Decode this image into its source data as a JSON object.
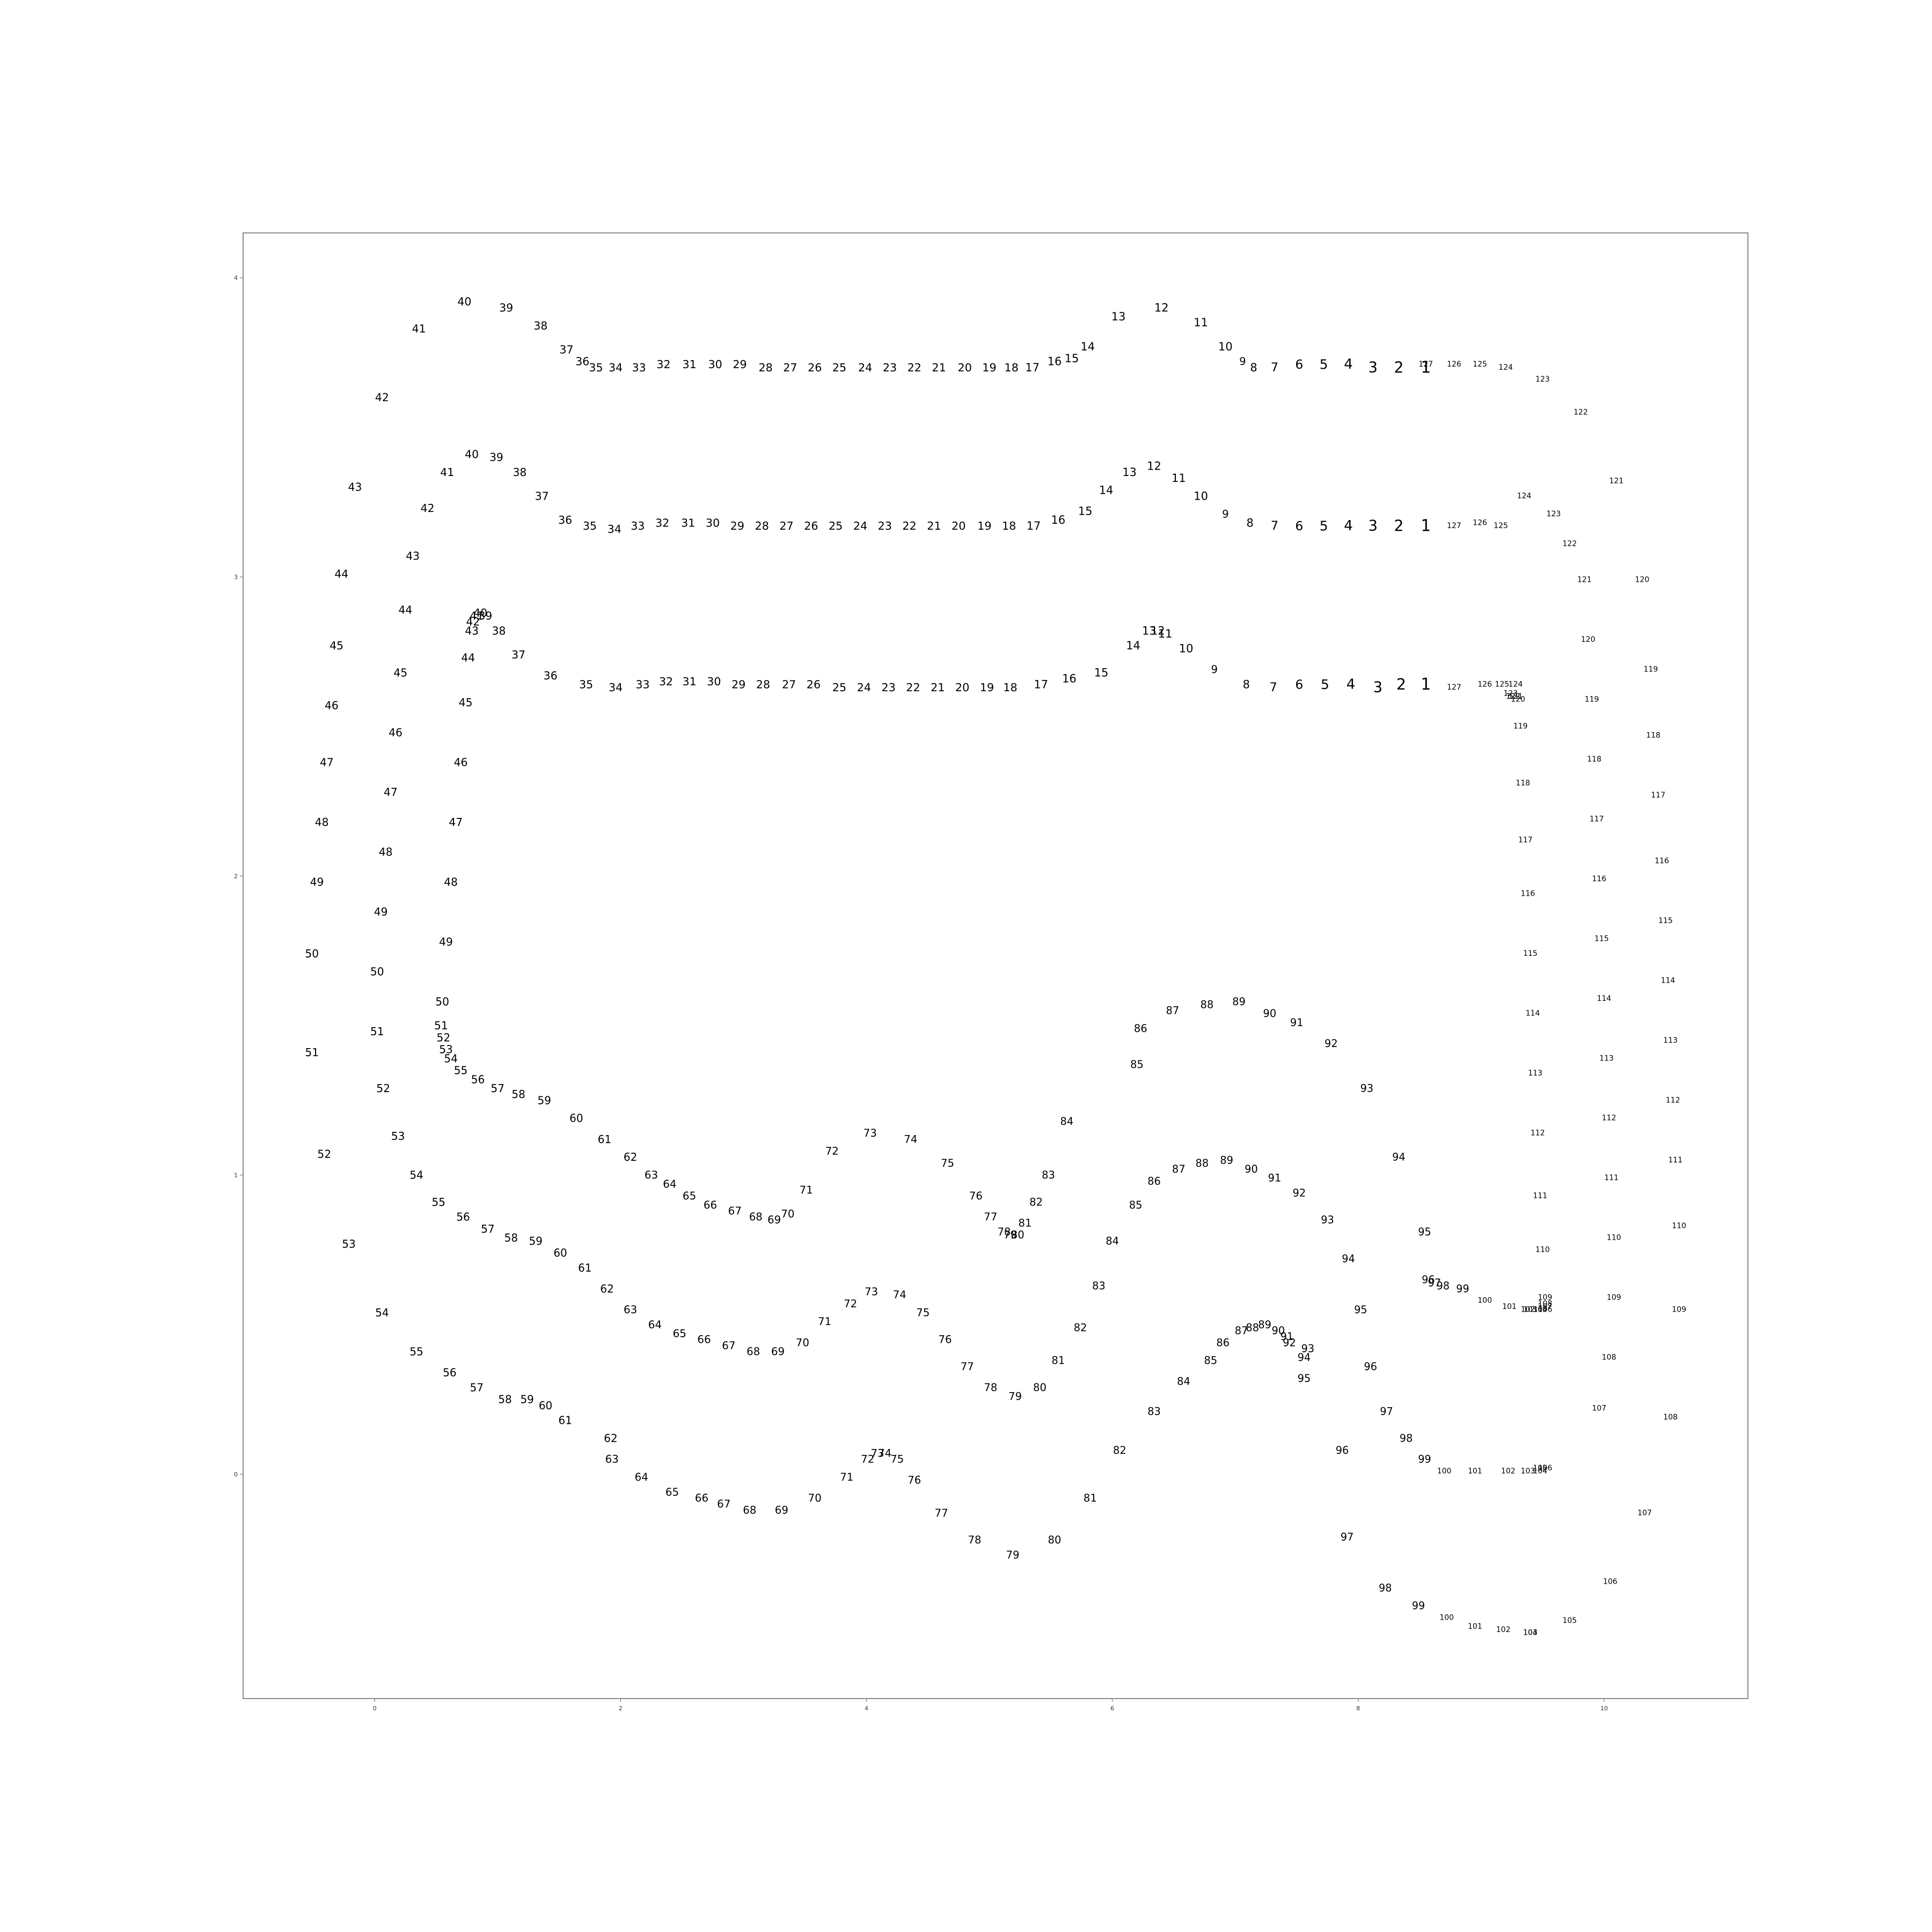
{
  "chart_data": {
    "type": "scatter",
    "title": "",
    "xlabel": "",
    "ylabel": "",
    "xlim": [
      -1.07,
      11.17
    ],
    "ylim": [
      -0.75,
      4.15
    ],
    "x_ticks": [
      "0",
      "2",
      "4",
      "6",
      "8",
      "10"
    ],
    "y_ticks": [
      "0",
      "1",
      "2",
      "3",
      "4"
    ],
    "grid": false,
    "legend": "none",
    "marker_style": "text",
    "text_color": "#000000",
    "frame_color": "#8c8c8c",
    "series": [
      {
        "labels": [
          "1",
          "2",
          "3",
          "4",
          "5",
          "6",
          "7",
          "8",
          "9",
          "10",
          "11",
          "12",
          "13",
          "14",
          "15",
          "16",
          "17",
          "18",
          "19",
          "20",
          "21",
          "22",
          "23",
          "24",
          "25",
          "26",
          "27",
          "28",
          "29",
          "30",
          "31",
          "32",
          "33",
          "34",
          "35",
          "36",
          "37",
          "38",
          "39",
          "40",
          "41",
          "42",
          "43",
          "44",
          "45",
          "46",
          "47",
          "48",
          "49",
          "50",
          "51",
          "52",
          "53",
          "54",
          "55",
          "56",
          "57",
          "58",
          "59",
          "60",
          "61",
          "62",
          "63",
          "64",
          "65",
          "66",
          "67",
          "68",
          "69",
          "70",
          "71",
          "72",
          "73",
          "74",
          "75",
          "76",
          "77",
          "78",
          "79",
          "80",
          "81",
          "82",
          "83",
          "84",
          "85",
          "86",
          "87",
          "88",
          "89",
          "90",
          "91",
          "92",
          "93",
          "94",
          "95",
          "96",
          "97",
          "98",
          "99",
          "100",
          "101",
          "102",
          "103",
          "104",
          "105",
          "106",
          "107",
          "108",
          "109",
          "110",
          "111",
          "112",
          "113",
          "114",
          "115",
          "116",
          "117",
          "118",
          "119",
          "120",
          "121",
          "122",
          "123",
          "124",
          "125",
          "126",
          "127"
        ],
        "x": [
          8.55,
          8.33,
          8.12,
          7.92,
          7.72,
          7.52,
          7.32,
          7.15,
          7.06,
          6.92,
          6.72,
          6.4,
          6.05,
          5.8,
          5.67,
          5.53,
          5.35,
          5.18,
          5.0,
          4.8,
          4.59,
          4.39,
          4.19,
          3.99,
          3.78,
          3.58,
          3.38,
          3.18,
          2.97,
          2.77,
          2.56,
          2.35,
          2.15,
          1.96,
          1.8,
          1.69,
          1.56,
          1.35,
          1.07,
          0.73,
          0.36,
          0.06,
          -0.16,
          -0.27,
          -0.31,
          -0.35,
          -0.39,
          -0.43,
          -0.47,
          -0.51,
          -0.51,
          -0.41,
          -0.21,
          0.06,
          0.34,
          0.61,
          0.83,
          1.06,
          1.24,
          1.39,
          1.55,
          1.92,
          1.93,
          2.17,
          2.42,
          2.66,
          2.84,
          3.05,
          3.31,
          3.58,
          3.84,
          4.01,
          4.09,
          4.15,
          4.25,
          4.39,
          4.61,
          4.88,
          5.19,
          5.53,
          5.82,
          6.06,
          6.34,
          6.58,
          6.8,
          6.9,
          7.05,
          7.14,
          7.24,
          7.35,
          7.42,
          7.44,
          7.59,
          7.56,
          7.56,
          7.87,
          7.91,
          8.22,
          8.49,
          8.72,
          8.95,
          9.18,
          9.4,
          9.4,
          9.72,
          10.05,
          10.33,
          10.54,
          10.61,
          10.61,
          10.58,
          10.56,
          10.54,
          10.52,
          10.5,
          10.47,
          10.44,
          10.4,
          10.38,
          10.31,
          10.1,
          9.81,
          9.5,
          9.2,
          8.99,
          8.78,
          8.55
        ],
        "y": [
          3.7,
          3.7,
          3.7,
          3.71,
          3.71,
          3.71,
          3.7,
          3.7,
          3.72,
          3.77,
          3.85,
          3.9,
          3.87,
          3.77,
          3.73,
          3.72,
          3.7,
          3.7,
          3.7,
          3.7,
          3.7,
          3.7,
          3.7,
          3.7,
          3.7,
          3.7,
          3.7,
          3.7,
          3.71,
          3.71,
          3.71,
          3.71,
          3.7,
          3.7,
          3.7,
          3.72,
          3.76,
          3.84,
          3.9,
          3.92,
          3.83,
          3.6,
          3.3,
          3.01,
          2.77,
          2.57,
          2.38,
          2.18,
          1.98,
          1.74,
          1.41,
          1.07,
          0.77,
          0.54,
          0.41,
          0.34,
          0.29,
          0.25,
          0.25,
          0.23,
          0.18,
          0.12,
          0.05,
          -0.01,
          -0.06,
          -0.08,
          -0.1,
          -0.12,
          -0.12,
          -0.08,
          -0.01,
          0.05,
          0.07,
          0.07,
          0.05,
          -0.02,
          -0.13,
          -0.22,
          -0.27,
          -0.22,
          -0.08,
          0.08,
          0.21,
          0.31,
          0.38,
          0.44,
          0.48,
          0.49,
          0.5,
          0.48,
          0.46,
          0.44,
          0.42,
          0.39,
          0.32,
          0.08,
          -0.21,
          -0.38,
          -0.44,
          -0.48,
          -0.51,
          -0.52,
          -0.53,
          -0.53,
          -0.49,
          -0.36,
          -0.13,
          0.19,
          0.55,
          0.83,
          1.05,
          1.25,
          1.45,
          1.65,
          1.85,
          2.05,
          2.27,
          2.47,
          2.69,
          2.99,
          3.32,
          3.55,
          3.66,
          3.7,
          3.71,
          3.71,
          3.71
        ]
      },
      {
        "labels": [
          "1",
          "2",
          "3",
          "4",
          "5",
          "6",
          "7",
          "8",
          "9",
          "10",
          "11",
          "12",
          "13",
          "14",
          "15",
          "16",
          "17",
          "18",
          "19",
          "20",
          "21",
          "22",
          "23",
          "24",
          "25",
          "26",
          "27",
          "28",
          "29",
          "30",
          "31",
          "32",
          "33",
          "34",
          "35",
          "36",
          "37",
          "38",
          "39",
          "40",
          "41",
          "42",
          "43",
          "44",
          "45",
          "46",
          "47",
          "48",
          "49",
          "50",
          "51",
          "52",
          "53",
          "54",
          "55",
          "56",
          "57",
          "58",
          "59",
          "60",
          "61",
          "62",
          "63",
          "64",
          "65",
          "66",
          "67",
          "68",
          "69",
          "70",
          "71",
          "72",
          "73",
          "74",
          "75",
          "76",
          "77",
          "78",
          "79",
          "80",
          "81",
          "82",
          "83",
          "84",
          "85",
          "86",
          "87",
          "88",
          "89",
          "90",
          "91",
          "92",
          "93",
          "94",
          "95",
          "96",
          "97",
          "98",
          "99",
          "100",
          "101",
          "102",
          "103",
          "104",
          "105",
          "106",
          "107",
          "108",
          "109",
          "110",
          "111",
          "112",
          "113",
          "114",
          "115",
          "116",
          "117",
          "118",
          "119",
          "120",
          "121",
          "122",
          "123",
          "124",
          "125",
          "126",
          "127"
        ],
        "x": [
          8.55,
          8.33,
          8.12,
          7.92,
          7.72,
          7.52,
          7.32,
          7.12,
          6.92,
          6.72,
          6.54,
          6.34,
          6.14,
          5.95,
          5.78,
          5.56,
          5.36,
          5.16,
          4.96,
          4.75,
          4.55,
          4.35,
          4.15,
          3.95,
          3.75,
          3.55,
          3.35,
          3.15,
          2.95,
          2.75,
          2.55,
          2.34,
          2.14,
          1.95,
          1.75,
          1.55,
          1.36,
          1.18,
          0.99,
          0.79,
          0.59,
          0.43,
          0.31,
          0.25,
          0.21,
          0.17,
          0.13,
          0.09,
          0.05,
          0.02,
          0.02,
          0.07,
          0.19,
          0.34,
          0.52,
          0.72,
          0.92,
          1.11,
          1.31,
          1.51,
          1.71,
          1.89,
          2.08,
          2.28,
          2.48,
          2.68,
          2.88,
          3.08,
          3.28,
          3.48,
          3.66,
          3.87,
          4.04,
          4.27,
          4.46,
          4.64,
          4.82,
          5.01,
          5.21,
          5.41,
          5.56,
          5.74,
          5.89,
          6.0,
          6.19,
          6.34,
          6.54,
          6.73,
          6.93,
          7.13,
          7.32,
          7.52,
          7.75,
          7.92,
          8.02,
          8.1,
          8.23,
          8.39,
          8.54,
          8.7,
          8.95,
          9.22,
          9.38,
          9.48,
          9.48,
          9.52,
          9.96,
          10.04,
          10.08,
          10.08,
          10.06,
          10.04,
          10.02,
          10.0,
          9.98,
          9.96,
          9.94,
          9.92,
          9.9,
          9.87,
          9.84,
          9.72,
          9.59,
          9.35,
          9.16,
          8.99,
          8.78,
          8.55
        ],
        "y": [
          3.17,
          3.17,
          3.17,
          3.17,
          3.17,
          3.17,
          3.17,
          3.18,
          3.21,
          3.27,
          3.33,
          3.37,
          3.35,
          3.29,
          3.22,
          3.19,
          3.17,
          3.17,
          3.17,
          3.17,
          3.17,
          3.17,
          3.17,
          3.17,
          3.17,
          3.17,
          3.17,
          3.17,
          3.17,
          3.18,
          3.18,
          3.18,
          3.17,
          3.16,
          3.17,
          3.19,
          3.27,
          3.35,
          3.4,
          3.41,
          3.35,
          3.23,
          3.07,
          2.89,
          2.68,
          2.48,
          2.28,
          2.08,
          1.88,
          1.68,
          1.48,
          1.29,
          1.13,
          1.0,
          0.91,
          0.86,
          0.82,
          0.79,
          0.78,
          0.74,
          0.69,
          0.62,
          0.55,
          0.5,
          0.47,
          0.45,
          0.43,
          0.41,
          0.41,
          0.44,
          0.51,
          0.57,
          0.61,
          0.6,
          0.54,
          0.45,
          0.36,
          0.29,
          0.26,
          0.29,
          0.38,
          0.49,
          0.63,
          0.78,
          0.9,
          0.98,
          1.02,
          1.04,
          1.05,
          1.02,
          0.99,
          0.94,
          0.85,
          0.72,
          0.55,
          0.36,
          0.21,
          0.12,
          0.05,
          0.01,
          0.01,
          0.01,
          0.01,
          0.01,
          0.02,
          0.02,
          0.22,
          0.39,
          0.59,
          0.79,
          0.99,
          1.19,
          1.39,
          1.59,
          1.79,
          1.99,
          2.19,
          2.39,
          2.59,
          2.79,
          2.99,
          3.11,
          3.21,
          3.27,
          3.17,
          3.18,
          3.17,
          3.17
        ]
      },
      {
        "labels": [
          "1",
          "2",
          "3",
          "4",
          "5",
          "6",
          "7",
          "8",
          "9",
          "10",
          "11",
          "12",
          "13",
          "14",
          "15",
          "16",
          "17",
          "18",
          "19",
          "20",
          "21",
          "22",
          "23",
          "24",
          "25",
          "26",
          "27",
          "28",
          "29",
          "30",
          "31",
          "32",
          "33",
          "34",
          "35",
          "36",
          "37",
          "38",
          "39",
          "40",
          "41",
          "42",
          "43",
          "44",
          "45",
          "46",
          "47",
          "48",
          "49",
          "50",
          "51",
          "52",
          "53",
          "54",
          "55",
          "56",
          "57",
          "58",
          "59",
          "60",
          "61",
          "62",
          "63",
          "64",
          "65",
          "66",
          "67",
          "68",
          "69",
          "70",
          "71",
          "72",
          "73",
          "74",
          "75",
          "76",
          "77",
          "78",
          "79",
          "80",
          "81",
          "82",
          "83",
          "84",
          "85",
          "86",
          "87",
          "88",
          "89",
          "90",
          "91",
          "92",
          "93",
          "94",
          "95",
          "96",
          "97",
          "98",
          "99",
          "100",
          "101",
          "102",
          "103",
          "104",
          "105",
          "106",
          "107",
          "108",
          "109",
          "110",
          "111",
          "112",
          "113",
          "114",
          "115",
          "116",
          "117",
          "118",
          "119",
          "120",
          "121",
          "122",
          "123",
          "124",
          "125",
          "126",
          "127"
        ],
        "x": [
          8.55,
          8.35,
          8.16,
          7.94,
          7.73,
          7.52,
          7.31,
          7.09,
          6.83,
          6.6,
          6.43,
          6.37,
          6.3,
          6.17,
          5.91,
          5.65,
          5.42,
          5.17,
          4.98,
          4.78,
          4.58,
          4.38,
          4.18,
          3.98,
          3.78,
          3.57,
          3.37,
          3.16,
          2.96,
          2.76,
          2.56,
          2.37,
          2.18,
          1.96,
          1.72,
          1.43,
          1.17,
          1.01,
          0.9,
          0.86,
          0.83,
          0.8,
          0.79,
          0.76,
          0.74,
          0.7,
          0.66,
          0.62,
          0.58,
          0.55,
          0.54,
          0.56,
          0.58,
          0.62,
          0.7,
          0.84,
          1.0,
          1.17,
          1.38,
          1.64,
          1.87,
          2.08,
          2.25,
          2.4,
          2.56,
          2.73,
          2.93,
          3.1,
          3.25,
          3.36,
          3.51,
          3.72,
          4.03,
          4.36,
          4.66,
          4.89,
          5.01,
          5.12,
          5.17,
          5.23,
          5.29,
          5.38,
          5.48,
          5.63,
          6.2,
          6.23,
          6.49,
          6.77,
          7.03,
          7.28,
          7.5,
          7.78,
          8.07,
          8.33,
          8.54,
          8.57,
          8.62,
          8.69,
          8.85,
          9.03,
          9.23,
          9.38,
          9.4,
          9.48,
          9.48,
          9.52,
          9.52,
          9.52,
          9.52,
          9.5,
          9.48,
          9.46,
          9.44,
          9.42,
          9.4,
          9.38,
          9.36,
          9.34,
          9.32,
          9.3,
          9.28,
          9.26,
          9.24,
          9.28,
          9.17,
          9.03,
          8.78
        ],
        "y": [
          2.64,
          2.64,
          2.63,
          2.64,
          2.64,
          2.64,
          2.63,
          2.64,
          2.69,
          2.76,
          2.81,
          2.82,
          2.82,
          2.77,
          2.68,
          2.66,
          2.64,
          2.63,
          2.63,
          2.63,
          2.63,
          2.63,
          2.63,
          2.63,
          2.63,
          2.64,
          2.64,
          2.64,
          2.64,
          2.65,
          2.65,
          2.65,
          2.64,
          2.63,
          2.64,
          2.67,
          2.74,
          2.82,
          2.87,
          2.88,
          2.87,
          2.85,
          2.82,
          2.73,
          2.58,
          2.38,
          2.18,
          1.98,
          1.78,
          1.58,
          1.5,
          1.46,
          1.42,
          1.39,
          1.35,
          1.32,
          1.29,
          1.27,
          1.25,
          1.19,
          1.12,
          1.06,
          1.0,
          0.97,
          0.93,
          0.9,
          0.88,
          0.86,
          0.85,
          0.87,
          0.95,
          1.08,
          1.14,
          1.12,
          1.04,
          0.93,
          0.86,
          0.81,
          0.8,
          0.8,
          0.84,
          0.91,
          1.0,
          1.18,
          1.37,
          1.49,
          1.55,
          1.57,
          1.58,
          1.54,
          1.51,
          1.44,
          1.29,
          1.06,
          0.81,
          0.65,
          0.64,
          0.63,
          0.62,
          0.58,
          0.56,
          0.55,
          0.55,
          0.55,
          0.55,
          0.55,
          0.56,
          0.57,
          0.59,
          0.75,
          0.93,
          1.14,
          1.34,
          1.54,
          1.74,
          1.94,
          2.12,
          2.31,
          2.5,
          2.59,
          2.6,
          2.6,
          2.61,
          2.64,
          2.64,
          2.64,
          2.63
        ]
      }
    ]
  }
}
